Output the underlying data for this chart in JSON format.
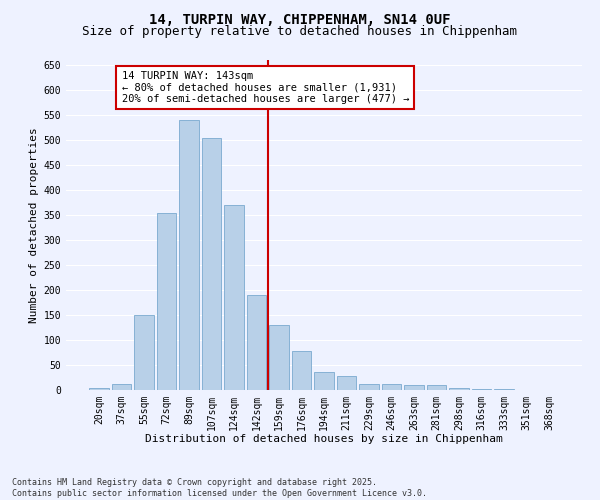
{
  "title": "14, TURPIN WAY, CHIPPENHAM, SN14 0UF",
  "subtitle": "Size of property relative to detached houses in Chippenham",
  "xlabel": "Distribution of detached houses by size in Chippenham",
  "ylabel": "Number of detached properties",
  "categories": [
    "20sqm",
    "37sqm",
    "55sqm",
    "72sqm",
    "89sqm",
    "107sqm",
    "124sqm",
    "142sqm",
    "159sqm",
    "176sqm",
    "194sqm",
    "211sqm",
    "229sqm",
    "246sqm",
    "263sqm",
    "281sqm",
    "298sqm",
    "316sqm",
    "333sqm",
    "351sqm",
    "368sqm"
  ],
  "values": [
    5,
    12,
    150,
    355,
    540,
    505,
    370,
    190,
    130,
    78,
    37,
    28,
    12,
    12,
    10,
    10,
    5,
    2,
    2,
    1,
    0
  ],
  "bar_color": "#b8d0e8",
  "bar_edge_color": "#7aaad0",
  "vline_x_index": 7,
  "vline_color": "#cc0000",
  "annotation_title": "14 TURPIN WAY: 143sqm",
  "annotation_line1": "← 80% of detached houses are smaller (1,931)",
  "annotation_line2": "20% of semi-detached houses are larger (477) →",
  "annotation_box_facecolor": "#ffffff",
  "annotation_box_edgecolor": "#cc0000",
  "ylim": [
    0,
    660
  ],
  "yticks": [
    0,
    50,
    100,
    150,
    200,
    250,
    300,
    350,
    400,
    450,
    500,
    550,
    600,
    650
  ],
  "bg_color": "#eef2ff",
  "grid_color": "#ffffff",
  "footer_line1": "Contains HM Land Registry data © Crown copyright and database right 2025.",
  "footer_line2": "Contains public sector information licensed under the Open Government Licence v3.0.",
  "title_fontsize": 10,
  "subtitle_fontsize": 9,
  "xlabel_fontsize": 8,
  "ylabel_fontsize": 8,
  "tick_fontsize": 7,
  "annotation_fontsize": 7.5,
  "footer_fontsize": 6
}
